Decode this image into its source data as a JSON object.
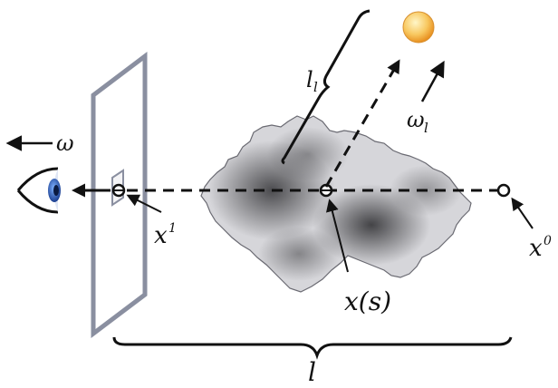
{
  "labels": {
    "omega": "ω",
    "light_direction": "ω",
    "light_direction_sub": "l",
    "light_distance": "l",
    "light_distance_sub": "l",
    "entry_point": "x",
    "entry_point_sup": "1",
    "exit_point": "x",
    "exit_point_sup": "0",
    "sample_point": "x(s)",
    "path_length": "l"
  },
  "colors": {
    "screen": "#8a8fa0",
    "line": "#111111",
    "light_inner": "#fff0b0",
    "light_outer": "#f0a020",
    "eye_iris": "#2b63c9",
    "cloud_dark": "#3a3a3c",
    "cloud_light": "#d4d4d8"
  }
}
